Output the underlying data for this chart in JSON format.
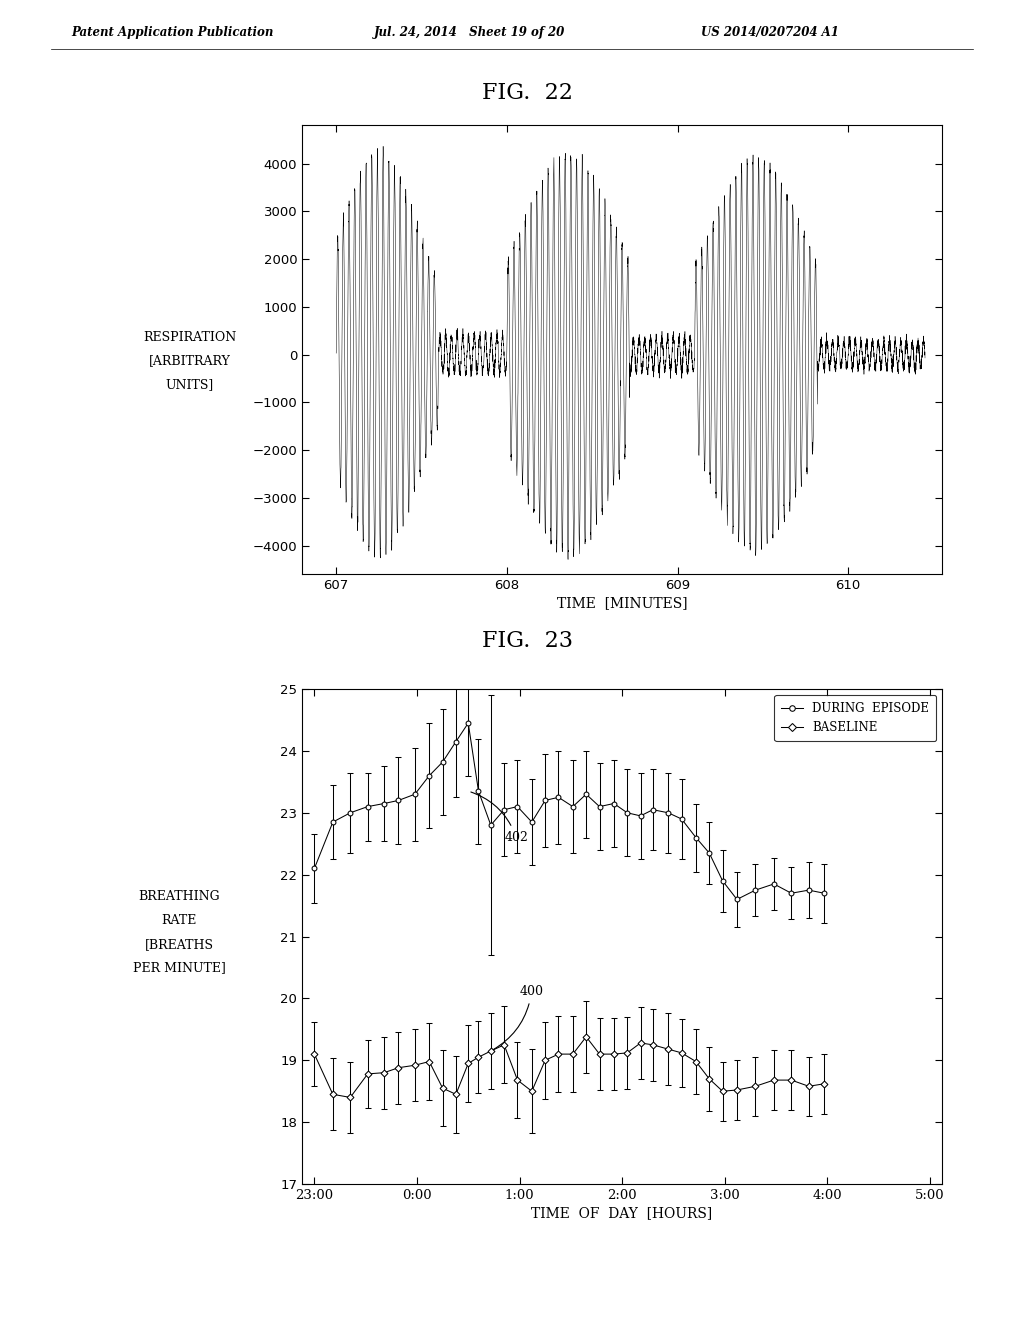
{
  "header_left": "Patent Application Publication",
  "header_mid": "Jul. 24, 2014   Sheet 19 of 20",
  "header_right": "US 2014/0207204 A1",
  "fig22_title": "FIG.  22",
  "fig23_title": "FIG.  23",
  "fig22_ylabel_line1": "RESPIRATION",
  "fig22_ylabel_line2": "[ARBITRARY",
  "fig22_ylabel_line3": "UNITS]",
  "fig22_xlabel": "TIME  [MINUTES]",
  "fig22_xlim": [
    606.8,
    610.55
  ],
  "fig22_ylim": [
    -4600,
    4800
  ],
  "fig22_yticks": [
    -4000,
    -3000,
    -2000,
    -1000,
    0,
    1000,
    2000,
    3000,
    4000
  ],
  "fig22_xticks": [
    607,
    608,
    609,
    610
  ],
  "fig23_ylabel_line1": "BREATHING",
  "fig23_ylabel_line2": "RATE",
  "fig23_ylabel_line3": "[BREATHS",
  "fig23_ylabel_line4": "PER MINUTE]",
  "fig23_xlabel": "TIME  OF  DAY  [HOURS]",
  "fig23_ylim": [
    17,
    25
  ],
  "fig23_yticks": [
    17,
    18,
    19,
    20,
    21,
    22,
    23,
    24,
    25
  ],
  "fig23_xtick_labels": [
    "23:00",
    "0:00",
    "1:00",
    "2:00",
    "3:00",
    "4:00",
    "5:00"
  ],
  "legend_episode": "DURING  EPISODE",
  "legend_baseline": "BASELINE",
  "background_color": "#ffffff"
}
